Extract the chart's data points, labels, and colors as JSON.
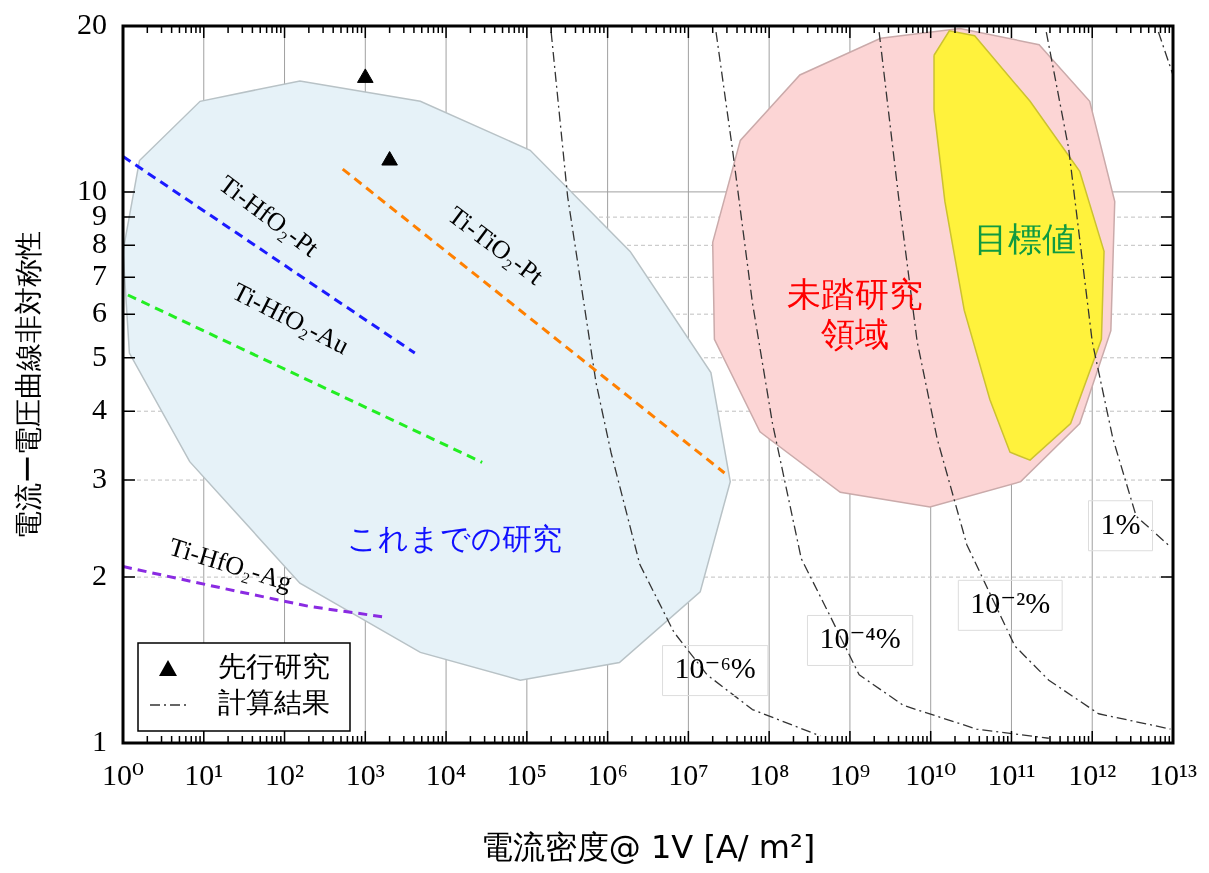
{
  "chart_data": {
    "type": "line",
    "xlabel": "電流密度@ 1V [A/ m²]",
    "ylabel": "電流ー電圧曲線非対称性",
    "log": "xy",
    "grid": true,
    "legend": "bottom left",
    "xlim": [
      1,
      10000000000000.0
    ],
    "ylim": [
      1,
      20
    ],
    "xticks": [
      {
        "value": 1,
        "label": "10⁰"
      },
      {
        "value": 10,
        "label": "10¹"
      },
      {
        "value": 100,
        "label": "10²"
      },
      {
        "value": 1000,
        "label": "10³"
      },
      {
        "value": 10000.0,
        "label": "10⁴"
      },
      {
        "value": 100000.0,
        "label": "10⁵"
      },
      {
        "value": 1000000.0,
        "label": "10⁶"
      },
      {
        "value": 10000000.0,
        "label": "10⁷"
      },
      {
        "value": 100000000.0,
        "label": "10⁸"
      },
      {
        "value": 1000000000.0,
        "label": "10⁹"
      },
      {
        "value": 10000000000.0,
        "label": "10¹⁰"
      },
      {
        "value": 100000000000.0,
        "label": "10¹¹"
      },
      {
        "value": 1000000000000.0,
        "label": "10¹²"
      },
      {
        "value": 10000000000000.0,
        "label": "10¹³"
      }
    ],
    "yticks": [
      1,
      2,
      3,
      4,
      5,
      6,
      7,
      8,
      9,
      10,
      20
    ],
    "series": [
      {
        "type": "area",
        "color": "#e6f2f8",
        "x": [
          1,
          1.6,
          9,
          155,
          4800,
          110000.0,
          1900000.0,
          19000000.0,
          33000000.0,
          14000000.0,
          1400000.0,
          83000.0,
          4800,
          155,
          6.7,
          1.2
        ],
        "values": [
          7.8,
          11.4,
          14.6,
          15.9,
          14.6,
          11.9,
          7.8,
          4.7,
          2.98,
          1.88,
          1.4,
          1.3,
          1.46,
          1.95,
          3.24,
          5.1
        ]
      },
      {
        "type": "area",
        "color": "#fcd5d5",
        "x": [
          20000000.0,
          44000000.0,
          240000000.0,
          2400000000.0,
          23000000000.0,
          220000000000.0,
          930000000000.0,
          1900000000000.0,
          1700000000000.0,
          700000000000.0,
          130000000000.0,
          9800000000.0,
          760000000.0,
          77000000.0,
          21000000.0
        ],
        "values": [
          8.1,
          12.4,
          16.3,
          19,
          19.8,
          18.5,
          14.6,
          9.6,
          5.6,
          3.8,
          2.98,
          2.68,
          2.85,
          3.67,
          5.4
        ]
      },
      {
        "type": "area",
        "color": "#fff23c",
        "x": [
          11000000000.0,
          17000000000.0,
          35000000000.0,
          170000000000.0,
          700000000000.0,
          1400000000000.0,
          1300000000000.0,
          540000000000.0,
          170000000000.0,
          96000000000.0,
          54000000000.0,
          26000000000.0,
          15000000000.0,
          11000000000.0
        ],
        "values": [
          17.7,
          19.6,
          19.2,
          14.6,
          10.9,
          7.8,
          5.4,
          3.8,
          3.26,
          3.37,
          4.2,
          6.1,
          9.6,
          14.1
        ]
      },
      {
        "line_style": "dashed",
        "marker": "none",
        "color": "#1a1aff",
        "x": [
          1,
          4100
        ],
        "values": [
          11.6,
          5.1
        ]
      },
      {
        "line_style": "dashed",
        "marker": "none",
        "color": "#ff8000",
        "x": [
          525,
          28000000.0
        ],
        "values": [
          11,
          3.09
        ]
      },
      {
        "line_style": "dashed",
        "marker": "none",
        "color": "#22ee22",
        "x": [
          1.15,
          28000.0
        ],
        "values": [
          6.5,
          3.23
        ]
      },
      {
        "line_style": "dashed",
        "marker": "none",
        "color": "#8a2be2",
        "x": [
          1,
          20,
          200,
          1850
        ],
        "values": [
          2.09,
          1.9,
          1.77,
          1.69
        ]
      },
      {
        "type": "scatter",
        "name": "先行研究",
        "marker": "triangle",
        "color": "#000000",
        "x": [
          1000,
          2000
        ],
        "values": [
          16.1,
          11.4
        ]
      },
      {
        "name": "計算結果",
        "line_style": "dashdot",
        "marker": "none",
        "color": "#333333",
        "x": [
          200000.0,
          320000.0,
          720000.0,
          1100000.0,
          2500000.0,
          6600000.0,
          17000000.0,
          62000000.0,
          430000000.0
        ],
        "values": [
          19.5,
          9.8,
          4.5,
          3.37,
          2.11,
          1.59,
          1.33,
          1.15,
          1.03
        ]
      },
      {
        "line_style": "dashdot",
        "marker": "none",
        "color": "#333333",
        "x": [
          22000000.0,
          35000000.0,
          62000000.0,
          110000000.0,
          250000000.0,
          580000000.0,
          1300000000.0,
          4600000000.0,
          37000000000.0,
          290000000000.0
        ],
        "values": [
          19.5,
          12,
          6.3,
          3.8,
          2.16,
          1.69,
          1.33,
          1.17,
          1.06,
          1.02
        ]
      },
      {
        "line_style": "dashdot",
        "marker": "none",
        "color": "#333333",
        "x": [
          2300000000.0,
          4000000000.0,
          6800000000.0,
          12000000000.0,
          28000000000.0,
          110000000000.0,
          290000000000.0,
          1200000000000.0,
          9300000000000.0
        ],
        "values": [
          19.5,
          9.8,
          5.35,
          3.57,
          2.29,
          1.5,
          1.3,
          1.13,
          1.06
        ]
      },
      {
        "line_style": "dashdot",
        "marker": "none",
        "color": "#333333",
        "x": [
          270000000000.0,
          510000000000.0,
          1000000000000.0,
          1800000000000.0,
          3500000000000.0,
          9300000000000.0
        ],
        "values": [
          19.5,
          12,
          5.35,
          3.57,
          2.58,
          2.27
        ]
      },
      {
        "line_style": "dashdot",
        "marker": "none",
        "color": "#333333",
        "x": [
          6600000000000.0,
          10000000000000.0
        ],
        "values": [
          19.5,
          16.3
        ]
      }
    ],
    "annotations": [
      "Ti-HfO₂-Pt",
      "Ti-TiO₂-Pt",
      "Ti-HfO₂-Au",
      "Ti-HfO₂-Ag",
      "10⁻⁶%",
      "10⁻⁴%",
      "10⁻²%",
      "1%",
      "これまでの研究",
      "未踏研究領域",
      "目標値"
    ]
  }
}
